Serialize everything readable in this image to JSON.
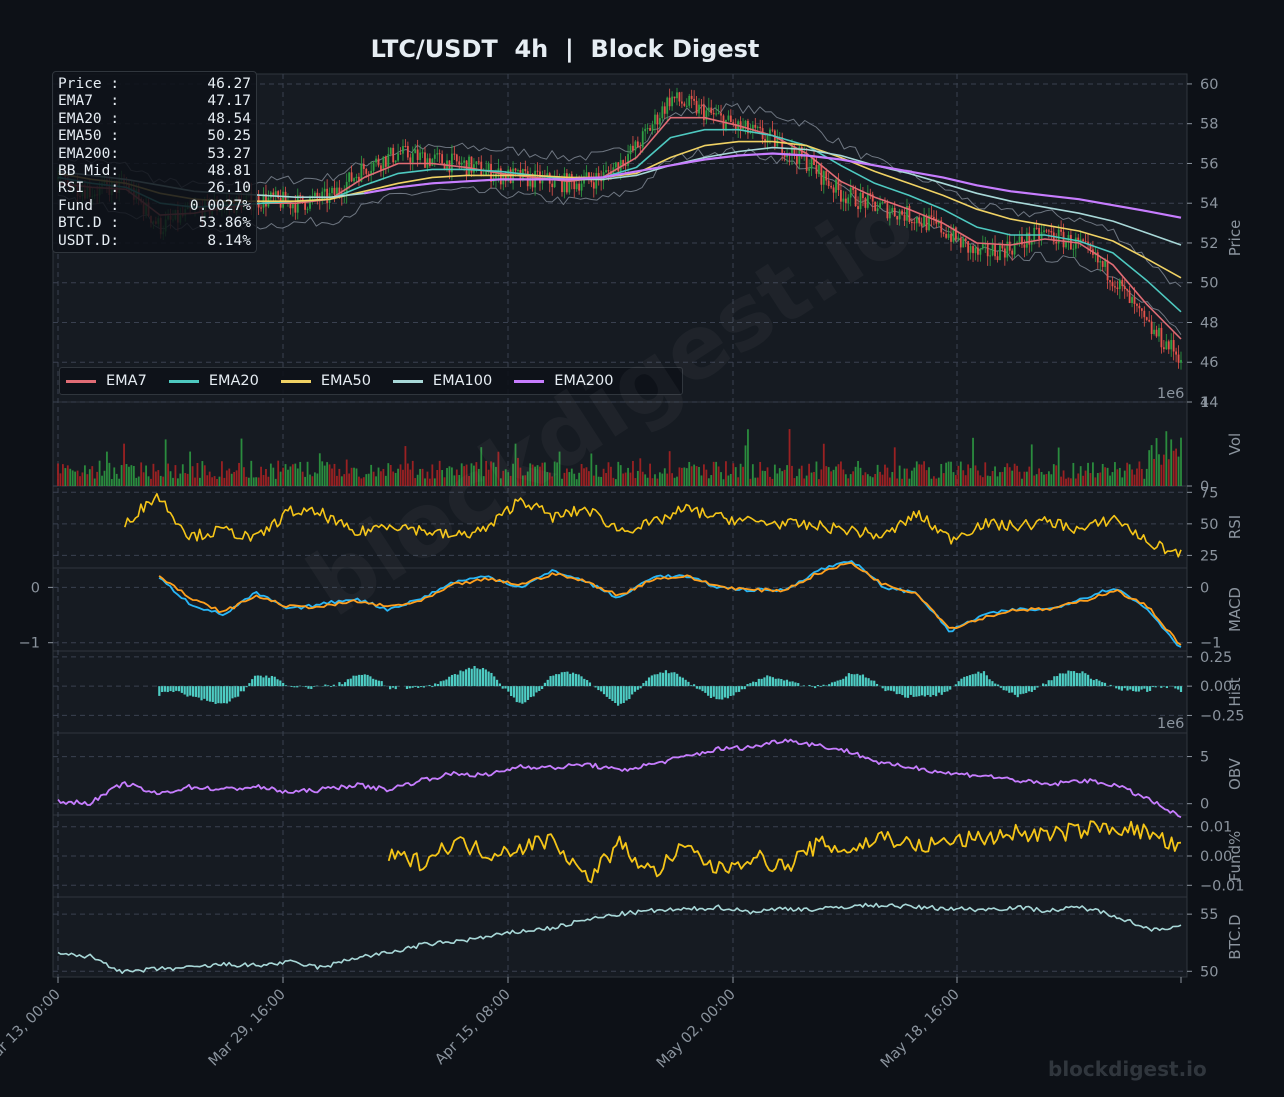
{
  "title": "LTC/USDT  4h  |  Block Digest",
  "watermark": "blockdigest.io",
  "stats": [
    {
      "label": "Price :",
      "value": "46.27"
    },
    {
      "label": "EMA7  :",
      "value": "47.17"
    },
    {
      "label": "EMA20 :",
      "value": "48.54"
    },
    {
      "label": "EMA50 :",
      "value": "50.25"
    },
    {
      "label": "EMA200:",
      "value": "53.27"
    },
    {
      "label": "BB Mid:",
      "value": "48.81"
    },
    {
      "label": "RSI   :",
      "value": "26.10"
    },
    {
      "label": "Fund  :",
      "value": "0.0027%"
    },
    {
      "label": "BTC.D :",
      "value": "53.86%"
    },
    {
      "label": "USDT.D:",
      "value": "8.14%"
    }
  ],
  "legend": [
    {
      "name": "EMA7",
      "color": "#e06c75"
    },
    {
      "name": "EMA20",
      "color": "#4ec9c0"
    },
    {
      "name": "EMA50",
      "color": "#f0d264"
    },
    {
      "name": "EMA100",
      "color": "#a8d8d8"
    },
    {
      "name": "EMA200",
      "color": "#c77dff"
    }
  ],
  "chart_data": {
    "type": "line",
    "x_ticks": [
      "Mar 13, 00:00",
      "Mar 29, 16:00",
      "Apr 15, 08:00",
      "May 02, 00:00",
      "May 18, 16:00"
    ],
    "grid": true,
    "panels": [
      {
        "ylabel": "Price",
        "ylim": [
          44,
          60.5
        ],
        "yticks": [
          "44",
          "46",
          "48",
          "50",
          "52",
          "54",
          "56",
          "58",
          "60"
        ],
        "series": [
          {
            "name": "Close",
            "color": "#e06c75",
            "values": [
              55.2,
              54.6,
              54.9,
              52.8,
              53.6,
              53.9,
              54.2,
              54.0,
              54.3,
              55.8,
              56.5,
              56.2,
              55.9,
              55.4,
              55.2,
              55.0,
              55.3,
              56.8,
              59.3,
              58.6,
              57.8,
              57.2,
              56.1,
              54.5,
              53.9,
              53.4,
              52.7,
              51.4,
              51.8,
              52.5,
              51.9,
              50.3,
              47.8,
              46.27
            ]
          },
          {
            "name": "EMA7",
            "color": "#e06c75",
            "values": [
              55.0,
              54.8,
              54.7,
              53.4,
              53.5,
              53.8,
              54.0,
              54.0,
              54.2,
              55.3,
              56.0,
              56.0,
              55.8,
              55.5,
              55.3,
              55.1,
              55.3,
              56.3,
              58.3,
              58.3,
              57.9,
              57.4,
              56.5,
              55.1,
              54.3,
              53.7,
              53.0,
              52.0,
              51.9,
              52.2,
              52.0,
              50.9,
              48.9,
              47.17
            ]
          },
          {
            "name": "EMA20",
            "color": "#4ec9c0",
            "values": [
              55.3,
              55.0,
              54.8,
              54.0,
              53.8,
              53.9,
              54.0,
              54.1,
              54.2,
              54.9,
              55.5,
              55.7,
              55.7,
              55.6,
              55.4,
              55.2,
              55.3,
              55.8,
              57.3,
              57.7,
              57.7,
              57.4,
              56.9,
              55.9,
              55.0,
              54.4,
              53.7,
              52.8,
              52.4,
              52.4,
              52.1,
              51.5,
              50.1,
              48.54
            ]
          },
          {
            "name": "EMA50",
            "color": "#f0d264",
            "values": [
              55.5,
              55.2,
              55.0,
              54.5,
              54.2,
              54.1,
              54.1,
              54.1,
              54.2,
              54.6,
              55.0,
              55.3,
              55.4,
              55.4,
              55.4,
              55.3,
              55.3,
              55.5,
              56.3,
              56.9,
              57.1,
              57.1,
              56.9,
              56.3,
              55.6,
              55.0,
              54.4,
              53.7,
              53.2,
              52.9,
              52.6,
              52.1,
              51.2,
              50.25
            ]
          },
          {
            "name": "EMA100",
            "color": "#a8d8d8",
            "values": [
              55.6,
              55.4,
              55.2,
              54.9,
              54.6,
              54.5,
              54.4,
              54.3,
              54.3,
              54.5,
              54.8,
              55.0,
              55.1,
              55.2,
              55.2,
              55.2,
              55.2,
              55.4,
              55.9,
              56.3,
              56.6,
              56.8,
              56.7,
              56.4,
              55.9,
              55.5,
              55.0,
              54.5,
              54.1,
              53.8,
              53.5,
              53.1,
              52.5,
              51.9
            ]
          },
          {
            "name": "EMA200",
            "color": "#c77dff",
            "values": [
              null,
              null,
              null,
              null,
              null,
              null,
              null,
              null,
              null,
              54.5,
              54.8,
              55.0,
              55.1,
              55.2,
              55.2,
              55.2,
              55.3,
              55.6,
              55.9,
              56.2,
              56.4,
              56.5,
              56.4,
              56.2,
              55.9,
              55.6,
              55.3,
              54.9,
              54.6,
              54.4,
              54.2,
              53.9,
              53.6,
              53.27
            ]
          }
        ]
      },
      {
        "ylabel": "Vol",
        "ylim": [
          0,
          1
        ],
        "yticks": [
          "0",
          "1"
        ],
        "scale_note": "1e6"
      },
      {
        "ylabel": "RSI",
        "ylim": [
          15,
          80
        ],
        "yticks": [
          "25",
          "50",
          "75"
        ],
        "series": [
          {
            "name": "RSI",
            "color": "#f5c518",
            "values": [
              null,
              null,
              50,
              73,
              40,
              45,
              38,
              60,
              58,
              42,
              50,
              45,
              40,
              46,
              70,
              55,
              62,
              45,
              50,
              62,
              55,
              52,
              50,
              48,
              45,
              40,
              58,
              38,
              50,
              48,
              52,
              45,
              55,
              35,
              26.1
            ]
          }
        ]
      },
      {
        "ylabel": "MACD",
        "ylim": [
          -1.15,
          0.35
        ],
        "yticks": [
          "-1",
          "0"
        ],
        "left_yticks": [
          "-1",
          "0"
        ],
        "series": [
          {
            "name": "MACD",
            "color": "#29b6f6",
            "values": [
              null,
              null,
              null,
              0.2,
              -0.3,
              -0.5,
              -0.1,
              -0.4,
              -0.3,
              -0.2,
              -0.4,
              -0.2,
              0.1,
              0.2,
              0.0,
              0.3,
              0.1,
              -0.2,
              0.2,
              0.2,
              0.0,
              -0.05,
              -0.05,
              0.3,
              0.5,
              0.0,
              -0.1,
              -0.8,
              -0.5,
              -0.4,
              -0.4,
              -0.2,
              0.0,
              -0.4,
              -1.1
            ]
          },
          {
            "name": "Signal",
            "color": "#ff9f1c",
            "values": [
              null,
              null,
              null,
              0.25,
              -0.2,
              -0.45,
              -0.15,
              -0.35,
              -0.35,
              -0.25,
              -0.35,
              -0.25,
              0.05,
              0.15,
              0.05,
              0.25,
              0.1,
              -0.15,
              0.15,
              0.2,
              0.02,
              -0.05,
              -0.05,
              0.25,
              0.45,
              0.05,
              -0.1,
              -0.75,
              -0.55,
              -0.4,
              -0.4,
              -0.25,
              -0.05,
              -0.35,
              -1.05
            ]
          }
        ]
      },
      {
        "ylabel": "Hist",
        "ylim": [
          -0.4,
          0.3
        ],
        "yticks": [
          "-0.25",
          "0.00",
          "0.25"
        ],
        "scale_note": "1e6"
      },
      {
        "ylabel": "OBV",
        "ylim": [
          -1.2,
          7.5
        ],
        "yticks": [
          "0",
          "5"
        ],
        "series": [
          {
            "name": "OBV",
            "color": "#c77dff",
            "values": [
              0.2,
              0.1,
              2.2,
              1.0,
              1.8,
              1.5,
              1.8,
              1.2,
              1.5,
              2.0,
              1.5,
              2.5,
              3.2,
              3.0,
              4.0,
              3.8,
              4.2,
              3.5,
              4.2,
              5.0,
              5.8,
              6.0,
              6.8,
              6.2,
              5.5,
              4.2,
              3.8,
              3.2,
              3.0,
              2.5,
              2.0,
              2.5,
              2.0,
              0.5,
              -1.5
            ]
          }
        ]
      },
      {
        "ylabel": "Fund%",
        "ylim": [
          -0.014,
          0.014
        ],
        "yticks": [
          "-0.01",
          "0.00",
          "0.01"
        ],
        "series": [
          {
            "name": "Funding",
            "color": "#f5c518",
            "values": [
              null,
              null,
              null,
              null,
              null,
              null,
              null,
              null,
              null,
              null,
              0.0,
              -0.002,
              0.005,
              0.001,
              0.003,
              0.006,
              -0.008,
              0.004,
              -0.006,
              0.003,
              -0.005,
              0.0,
              -0.004,
              0.004,
              0.002,
              0.007,
              0.003,
              0.005,
              0.006,
              0.008,
              0.007,
              0.009,
              0.01,
              0.008,
              0.002
            ]
          }
        ]
      },
      {
        "ylabel": "BTC.D",
        "ylim": [
          49.5,
          56.5
        ],
        "yticks": [
          "50",
          "55"
        ],
        "series": [
          {
            "name": "BTC.D",
            "color": "#a8d8d8",
            "values": [
              51.5,
              51.3,
              49.9,
              50.2,
              50.3,
              50.6,
              50.5,
              50.8,
              50.3,
              51.2,
              51.6,
              52.3,
              52.6,
              53.0,
              53.5,
              53.8,
              54.5,
              55.0,
              55.3,
              55.4,
              55.6,
              55.2,
              55.5,
              55.4,
              55.7,
              55.8,
              55.6,
              55.5,
              55.4,
              55.6,
              55.3,
              55.6,
              54.9,
              53.7,
              53.86
            ]
          }
        ]
      }
    ]
  }
}
